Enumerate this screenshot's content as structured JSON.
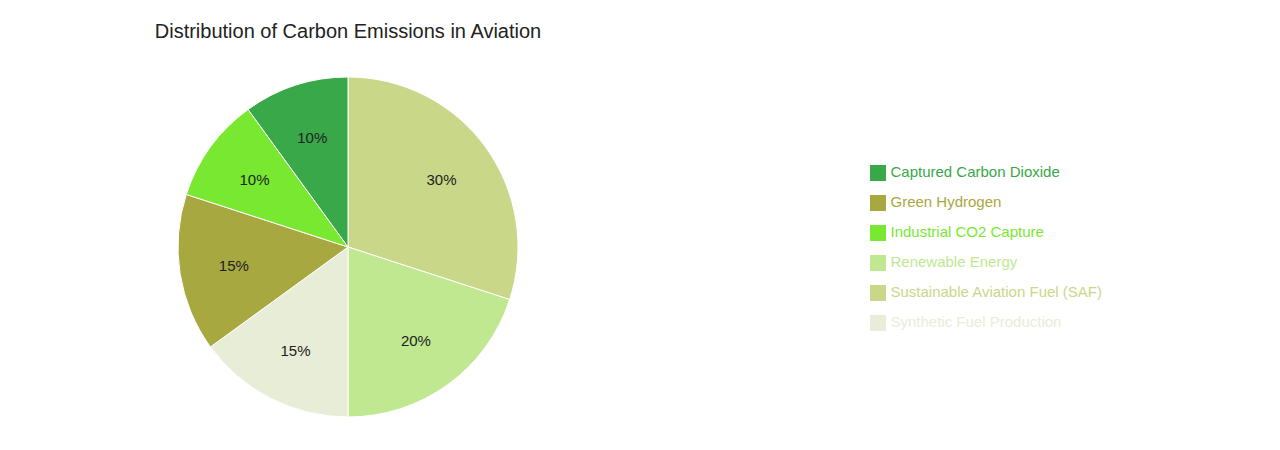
{
  "chart_data": {
    "type": "pie",
    "title": "Distribution of Carbon Emissions in Aviation",
    "categories": [
      "Sustainable Aviation Fuel (SAF)",
      "Renewable Energy",
      "Synthetic Fuel Production",
      "Green Hydrogen",
      "Industrial CO2 Capture",
      "Captured Carbon Dioxide"
    ],
    "values": [
      30,
      20,
      15,
      15,
      10,
      10
    ],
    "value_labels": [
      "30%",
      "20%",
      "15%",
      "15%",
      "10%",
      "10%"
    ],
    "colors": [
      "#c8d888",
      "#c0e890",
      "#e8edd8",
      "#a8a840",
      "#78e830",
      "#38a848"
    ],
    "data_labels": true,
    "legend": "right"
  }
}
